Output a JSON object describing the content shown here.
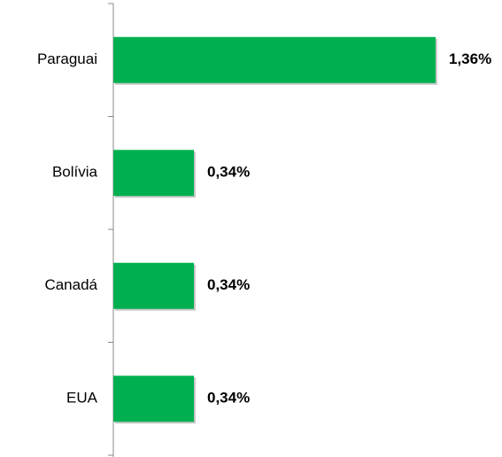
{
  "chart_data": {
    "type": "bar",
    "orientation": "horizontal",
    "categories": [
      "Paraguai",
      "Bolívia",
      "Canadá",
      "EUA"
    ],
    "values": [
      1.36,
      0.34,
      0.34,
      0.34
    ],
    "value_labels": [
      "1,36%",
      "0,34%",
      "0,34%",
      "0,34%"
    ],
    "color": "#00b050"
  }
}
